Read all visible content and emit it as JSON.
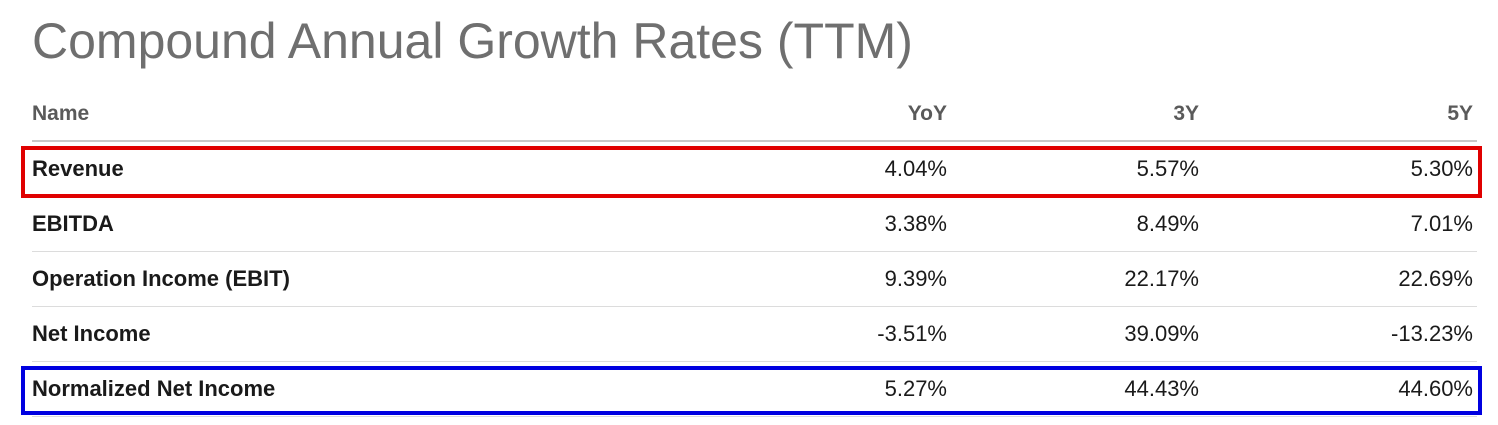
{
  "title": "Compound Annual Growth Rates (TTM)",
  "table": {
    "headers": {
      "name": "Name",
      "yoy": "YoY",
      "y3": "3Y",
      "y5": "5Y"
    },
    "rows": [
      {
        "name": "Revenue",
        "yoy": "4.04%",
        "y3": "5.57%",
        "y5": "5.30%"
      },
      {
        "name": "EBITDA",
        "yoy": "3.38%",
        "y3": "8.49%",
        "y5": "7.01%"
      },
      {
        "name": "Operation Income (EBIT)",
        "yoy": "9.39%",
        "y3": "22.17%",
        "y5": "22.69%"
      },
      {
        "name": "Net Income",
        "yoy": "-3.51%",
        "y3": "39.09%",
        "y5": "-13.23%"
      },
      {
        "name": "Normalized Net Income",
        "yoy": "5.27%",
        "y3": "44.43%",
        "y5": "44.60%"
      }
    ]
  },
  "highlights": {
    "revenue_box_color": "#e00000",
    "normalized_box_color": "#0000e0"
  }
}
